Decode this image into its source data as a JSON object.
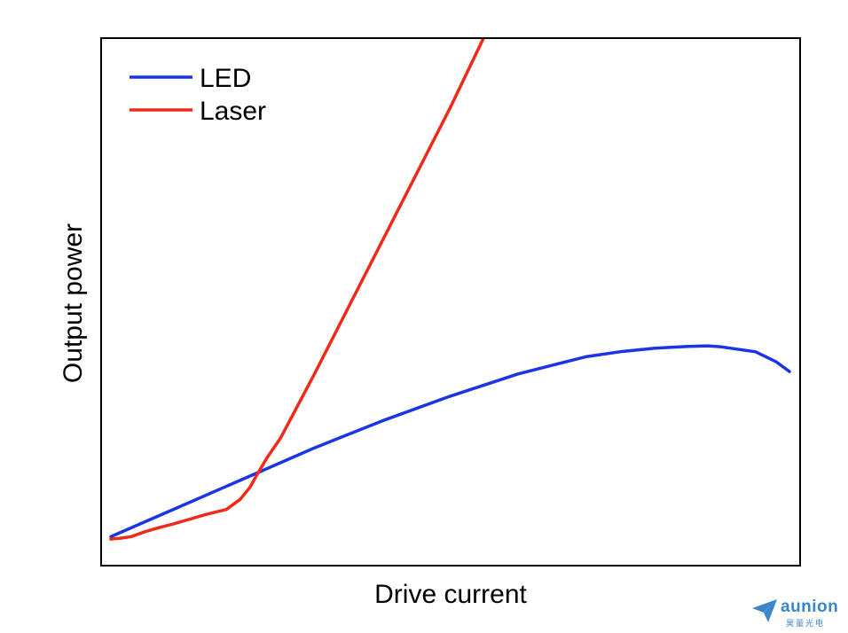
{
  "chart_data": {
    "type": "line",
    "title": "",
    "xlabel": "Drive current",
    "ylabel": "Output power",
    "xlim": [
      0,
      100
    ],
    "ylim": [
      0,
      100
    ],
    "grid": false,
    "legend_position": "top-left",
    "series": [
      {
        "name": "LED",
        "color": "#1a35e6",
        "x": [
          0,
          5,
          10,
          20,
          30,
          40,
          50,
          60,
          70,
          75,
          80,
          85,
          88,
          90,
          95,
          98,
          100
        ],
        "y": [
          3,
          6,
          9,
          15,
          21,
          26.5,
          31.5,
          36,
          39.5,
          40.5,
          41.2,
          41.6,
          41.7,
          41.5,
          40.5,
          38.5,
          36.5
        ]
      },
      {
        "name": "Laser",
        "color": "#f02a1a",
        "x": [
          0,
          1.5,
          3,
          5,
          7,
          9,
          11,
          14,
          17,
          19,
          20.5,
          21.5,
          23,
          25,
          30,
          40,
          50,
          58
        ],
        "y": [
          2.5,
          2.7,
          3,
          4,
          4.8,
          5.5,
          6.3,
          7.5,
          8.5,
          10.5,
          13,
          15.5,
          19,
          23,
          36,
          63,
          90,
          113
        ]
      }
    ]
  },
  "watermark": {
    "brand": "aunion",
    "sub": "昊量光电"
  }
}
